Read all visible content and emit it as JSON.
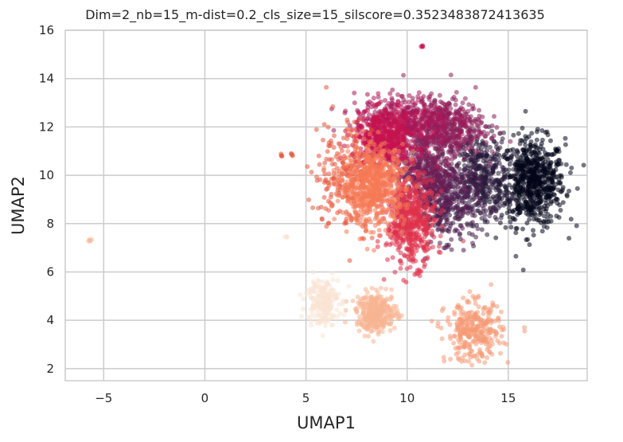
{
  "chart_data": {
    "type": "scatter",
    "title": "Dim=2_nb=15_m-dist=0.2_cls_size=15_silscore=0.3523483872413635",
    "xlabel": "UMAP1",
    "ylabel": "UMAP2",
    "xlim": [
      -6.9,
      18.9
    ],
    "ylim": [
      1.5,
      16.0
    ],
    "xticks": [
      -5,
      0,
      5,
      10,
      15
    ],
    "yticks": [
      2,
      4,
      6,
      8,
      10,
      12,
      14,
      16
    ],
    "grid": true,
    "clusters": [
      {
        "color": "#03051a",
        "center": [
          16.2,
          9.7
        ],
        "spread": [
          0.8,
          0.9
        ],
        "n": 700
      },
      {
        "color": "#2a1a3a",
        "center": [
          13.6,
          9.9
        ],
        "spread": [
          0.7,
          0.9
        ],
        "n": 420
      },
      {
        "color": "#4d1d4f",
        "center": [
          11.9,
          8.9
        ],
        "spread": [
          0.8,
          0.8
        ],
        "n": 380
      },
      {
        "color": "#6d1f56",
        "center": [
          10.9,
          10.2
        ],
        "spread": [
          0.7,
          0.8
        ],
        "n": 420
      },
      {
        "color": "#8c1f5a",
        "center": [
          11.8,
          12.0
        ],
        "spread": [
          1.0,
          0.6
        ],
        "n": 480
      },
      {
        "color": "#a8185a",
        "center": [
          9.8,
          12.3
        ],
        "spread": [
          1.2,
          0.5
        ],
        "n": 380
      },
      {
        "color": "#c6134f",
        "center": [
          8.9,
          11.4
        ],
        "spread": [
          0.8,
          0.6
        ],
        "n": 500
      },
      {
        "color": "#e0314a",
        "center": [
          10.2,
          8.1
        ],
        "spread": [
          0.6,
          0.9
        ],
        "n": 520
      },
      {
        "color": "#e8553c",
        "center": [
          7.0,
          10.0
        ],
        "spread": [
          0.8,
          1.2
        ],
        "n": 220
      },
      {
        "color": "#f57a55",
        "center": [
          8.3,
          9.6
        ],
        "spread": [
          0.8,
          0.8
        ],
        "n": 650
      },
      {
        "color": "#f59b77",
        "center": [
          13.3,
          3.5
        ],
        "spread": [
          0.7,
          0.6
        ],
        "n": 320
      },
      {
        "color": "#f7b592",
        "center": [
          8.5,
          4.3
        ],
        "spread": [
          0.5,
          0.4
        ],
        "n": 320
      },
      {
        "color": "#fae4d4",
        "center": [
          5.8,
          4.8
        ],
        "spread": [
          0.4,
          0.5
        ],
        "n": 210
      }
    ],
    "extra_points": [
      {
        "x": -5.7,
        "y": 7.3,
        "color": "#f7b592"
      },
      {
        "x": 10.7,
        "y": 15.35,
        "color": "#c6134f"
      },
      {
        "x": 4.0,
        "y": 7.45,
        "color": "#fae4d4"
      },
      {
        "x": 3.8,
        "y": 10.85,
        "color": "#e8553c"
      },
      {
        "x": 4.3,
        "y": 10.8,
        "color": "#e8553c"
      }
    ]
  }
}
